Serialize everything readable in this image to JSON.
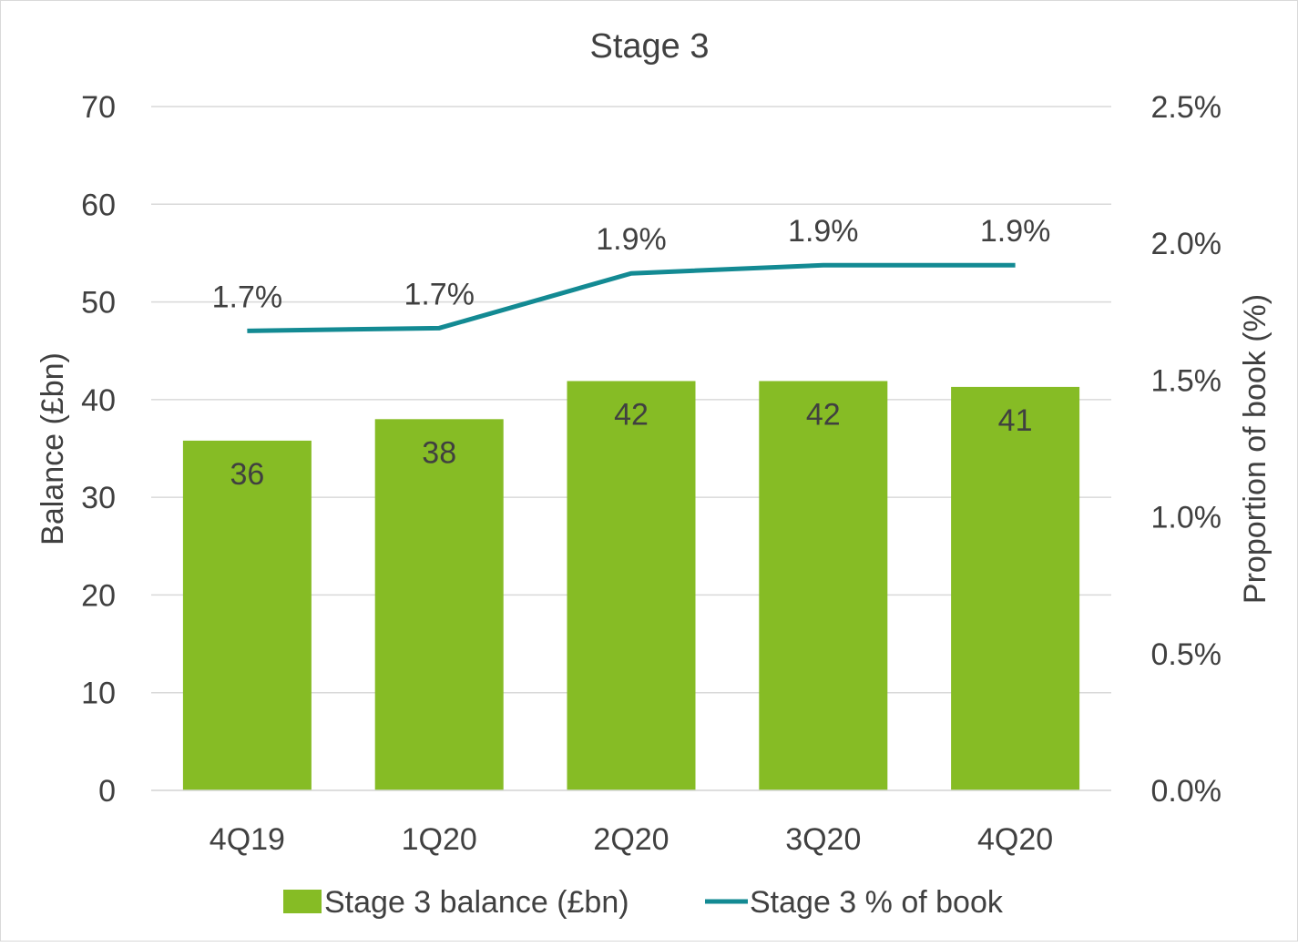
{
  "chart_data": {
    "type": "bar+line",
    "title": "Stage 3",
    "categories": [
      "4Q19",
      "1Q20",
      "2Q20",
      "3Q20",
      "4Q20"
    ],
    "series": [
      {
        "name": "Stage 3 balance (£bn)",
        "type": "bar",
        "axis": "left",
        "values": [
          35.8,
          38.0,
          41.9,
          41.9,
          41.3
        ],
        "labels": [
          "36",
          "38",
          "42",
          "42",
          "41"
        ],
        "color": "#86bc25"
      },
      {
        "name": "Stage 3 % of book",
        "type": "line",
        "axis": "right",
        "values": [
          1.68,
          1.69,
          1.89,
          1.92,
          1.92
        ],
        "labels": [
          "1.7%",
          "1.7%",
          "1.9%",
          "1.9%",
          "1.9%"
        ],
        "color": "#138a93"
      }
    ],
    "ylabel": "Balance (£bn)",
    "ylim": [
      0,
      70
    ],
    "yticks": [
      "0",
      "10",
      "20",
      "30",
      "40",
      "50",
      "60",
      "70"
    ],
    "y2label": "Proportion of book (%)",
    "y2lim": [
      0,
      2.5
    ],
    "y2ticks": [
      "0.0%",
      "0.5%",
      "1.0%",
      "1.5%",
      "2.0%",
      "2.5%"
    ],
    "grid": true,
    "legend": "bottom",
    "gridColor": "#d9d9d9"
  }
}
